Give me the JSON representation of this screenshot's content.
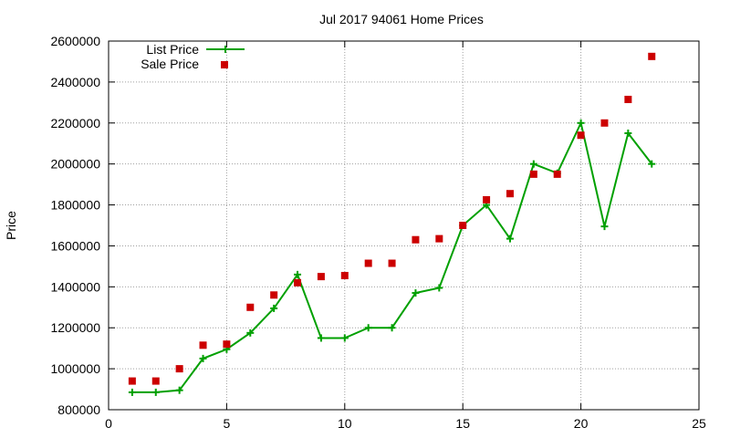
{
  "chart_data": {
    "type": "scatter",
    "title": "Jul 2017 94061 Home Prices",
    "xlabel": "",
    "ylabel": "Price",
    "xlim": [
      0,
      25
    ],
    "ylim": [
      800000,
      2600000
    ],
    "xticks": [
      0,
      5,
      10,
      15,
      20,
      25
    ],
    "yticks": [
      800000,
      1000000,
      1200000,
      1400000,
      1600000,
      1800000,
      2000000,
      2200000,
      2400000,
      2600000
    ],
    "grid": true,
    "legend_position": "top-left",
    "series": [
      {
        "name": "List Price",
        "style": "line-with-plus-markers",
        "color": "#00a000",
        "x": [
          1,
          2,
          3,
          4,
          5,
          6,
          7,
          8,
          9,
          10,
          11,
          12,
          13,
          14,
          15,
          16,
          17,
          18,
          19,
          20,
          21,
          22,
          23
        ],
        "values": [
          885000,
          885000,
          895000,
          1050000,
          1095000,
          1175000,
          1295000,
          1460000,
          1150000,
          1150000,
          1200000,
          1200000,
          1370000,
          1395000,
          1700000,
          1800000,
          1635000,
          2000000,
          1955000,
          2200000,
          1695000,
          2150000,
          2000000
        ]
      },
      {
        "name": "Sale Price",
        "style": "square-markers",
        "color": "#cc0000",
        "x": [
          1,
          2,
          3,
          4,
          5,
          6,
          7,
          8,
          9,
          10,
          11,
          12,
          13,
          14,
          15,
          16,
          17,
          18,
          19,
          20,
          21,
          22,
          23
        ],
        "values": [
          940000,
          940000,
          1000000,
          1115000,
          1120000,
          1300000,
          1360000,
          1420000,
          1450000,
          1455000,
          1515000,
          1515000,
          1630000,
          1635000,
          1700000,
          1825000,
          1855000,
          1950000,
          1950000,
          2140000,
          2200000,
          2315000,
          2525000
        ]
      }
    ]
  }
}
